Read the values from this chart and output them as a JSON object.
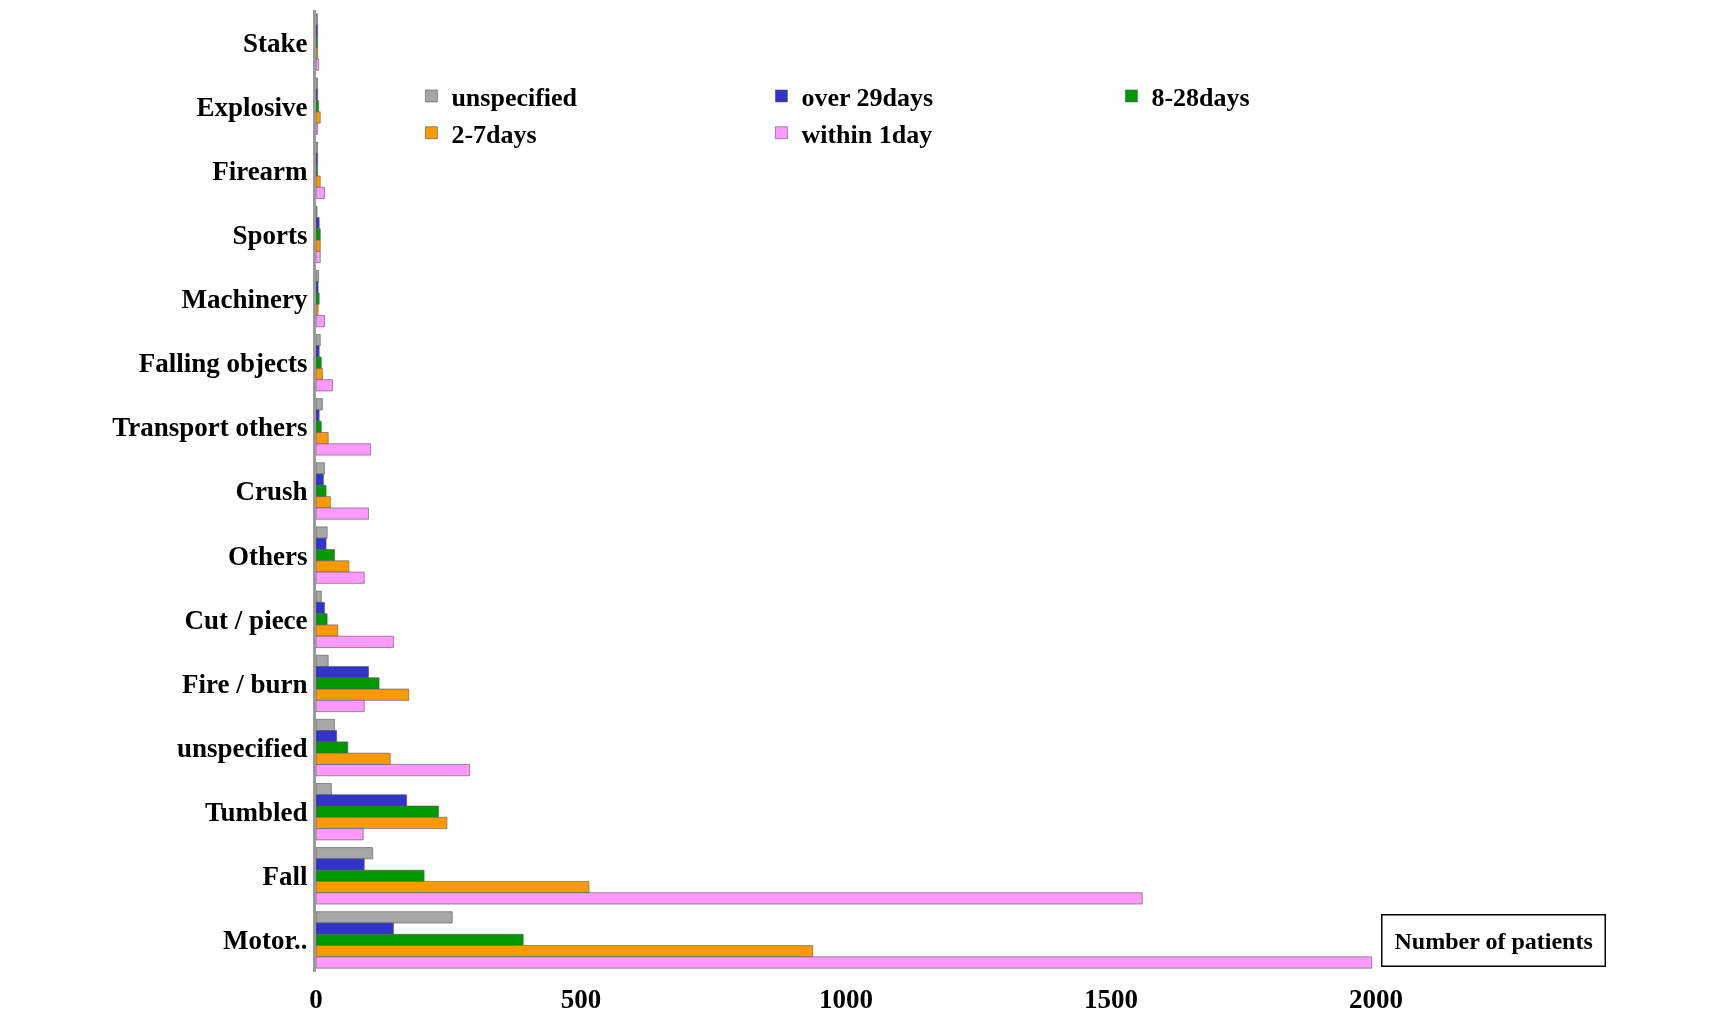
{
  "chart_data": {
    "type": "bar",
    "orientation": "horizontal",
    "xlabel": "Number of patients",
    "categories": [
      "Stake",
      "Explosive",
      "Firearm",
      "Sports",
      "Machinery",
      "Falling objects",
      "Transport others",
      "Crush",
      "Others",
      "Cut / piece",
      "Fire / burn",
      "unspecified",
      "Tumbled",
      "Fall",
      "Motor.."
    ],
    "series": [
      {
        "name": "unspecified",
        "color": "#a6a6a6",
        "values": [
          3,
          3,
          3,
          2,
          5,
          8,
          12,
          16,
          21,
          10,
          23,
          35,
          29,
          107,
          257
        ]
      },
      {
        "name": "over 29days",
        "color": "#3333cc",
        "values": [
          3,
          3,
          3,
          6,
          4,
          6,
          6,
          14,
          19,
          16,
          99,
          39,
          171,
          91,
          146
        ]
      },
      {
        "name": "8-28days",
        "color": "#009900",
        "values": [
          3,
          5,
          3,
          8,
          6,
          10,
          10,
          19,
          35,
          21,
          119,
          60,
          231,
          204,
          391
        ]
      },
      {
        "name": "2-7days",
        "color": "#ff9900",
        "values": [
          3,
          8,
          8,
          8,
          4,
          12,
          23,
          27,
          62,
          41,
          175,
          140,
          247,
          515,
          937
        ]
      },
      {
        "name": "within 1day",
        "color": "#ff99ff",
        "values": [
          5,
          3,
          16,
          8,
          16,
          31,
          103,
          99,
          91,
          146,
          91,
          290,
          89,
          1559,
          1992
        ]
      }
    ],
    "xlim": [
      0,
      2000
    ],
    "xticks": [
      0,
      500,
      1000,
      1500,
      2000
    ],
    "legend": "top"
  }
}
